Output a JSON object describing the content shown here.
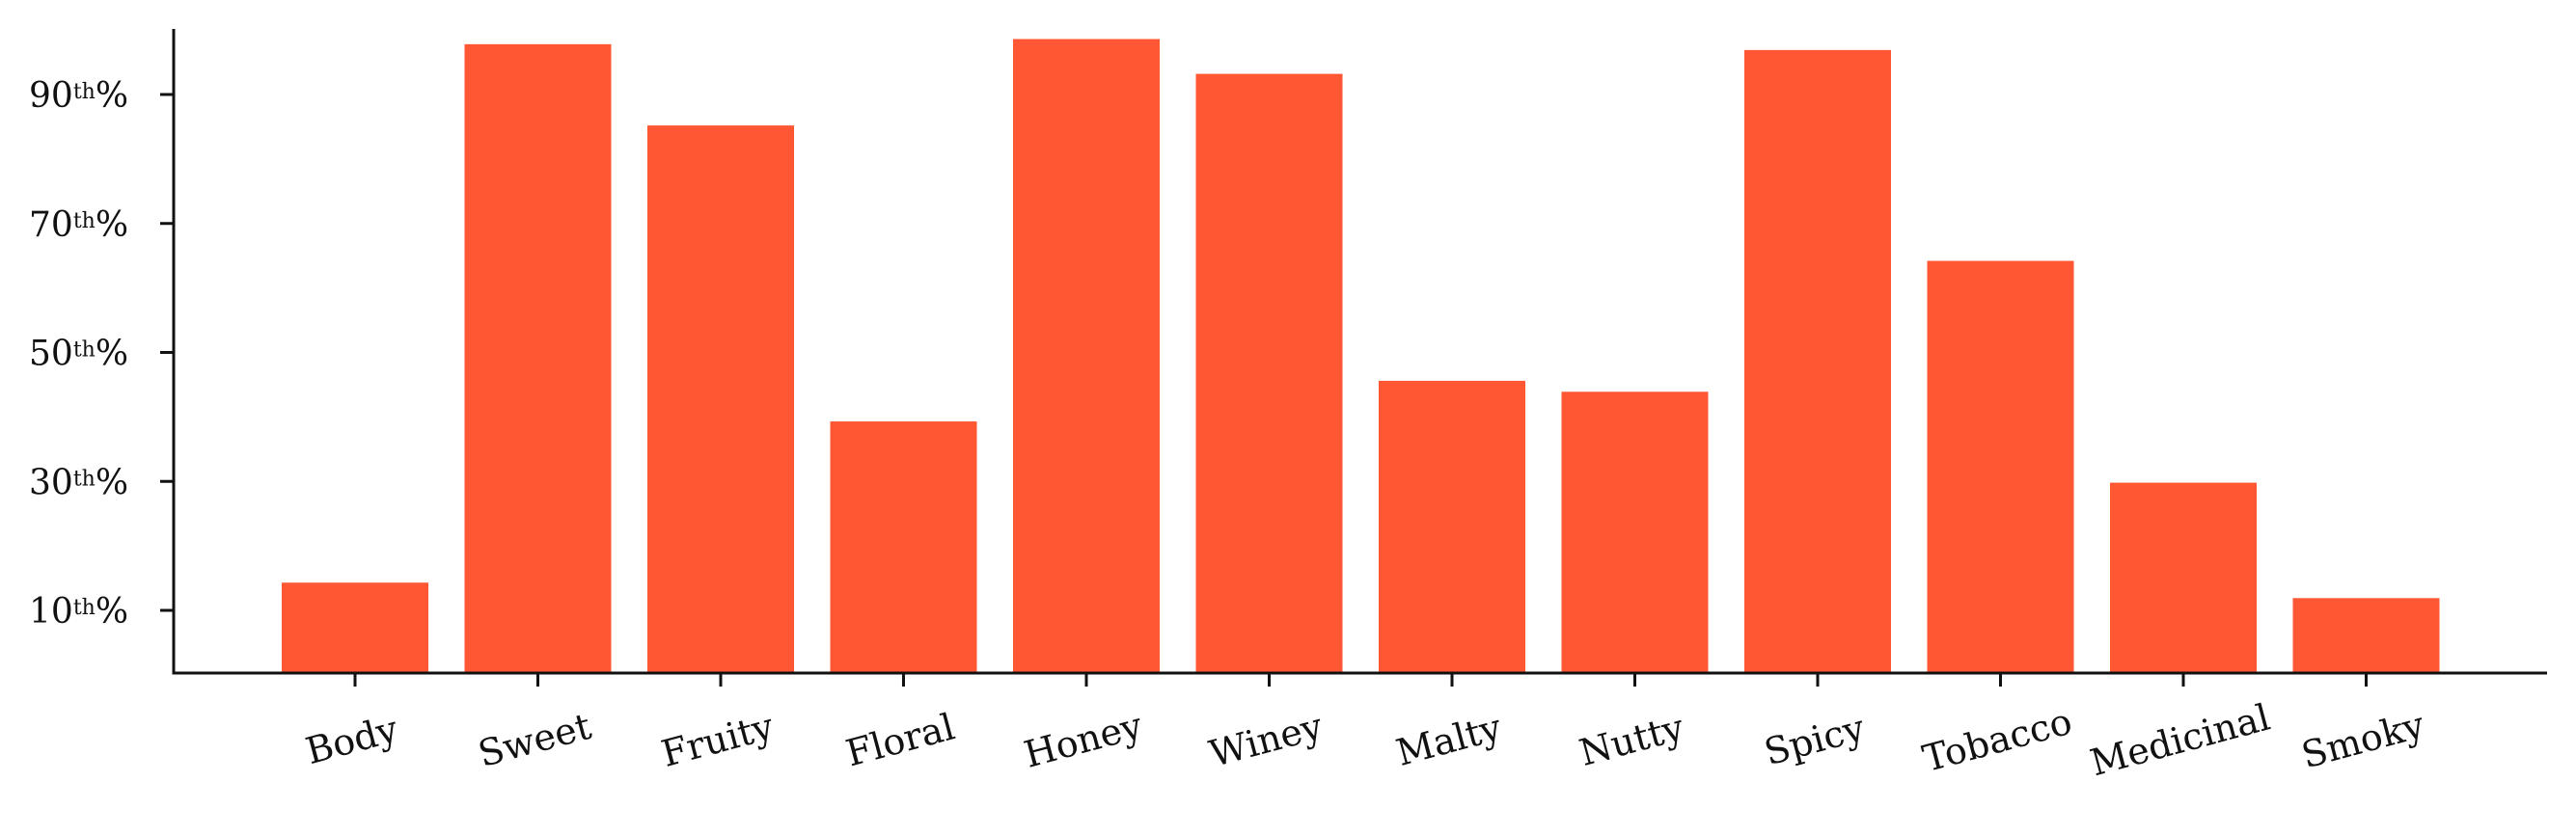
{
  "chart_data": {
    "type": "bar",
    "title": "",
    "xlabel": "",
    "ylabel": "",
    "ylim": [
      0,
      100
    ],
    "categories": [
      "Body",
      "Sweet",
      "Fruity",
      "Floral",
      "Honey",
      "Winey",
      "Malty",
      "Nutty",
      "Spicy",
      "Tobacco",
      "Medicinal",
      "Smoky"
    ],
    "values": [
      14.3,
      97.8,
      85.2,
      39.3,
      98.6,
      93.2,
      45.6,
      43.9,
      96.9,
      64.2,
      29.8,
      11.9
    ],
    "bar_color": "#ff5733",
    "y_ticks": [
      {
        "value": 10,
        "num": "10",
        "sup": "th",
        "suffix": "%"
      },
      {
        "value": 30,
        "num": "30",
        "sup": "th",
        "suffix": "%"
      },
      {
        "value": 50,
        "num": "50",
        "sup": "th",
        "suffix": "%"
      },
      {
        "value": 70,
        "num": "70",
        "sup": "th",
        "suffix": "%"
      },
      {
        "value": 90,
        "num": "90",
        "sup": "th",
        "suffix": "%"
      }
    ],
    "grid": false,
    "legend": "none",
    "spines": [
      "left",
      "bottom"
    ]
  }
}
